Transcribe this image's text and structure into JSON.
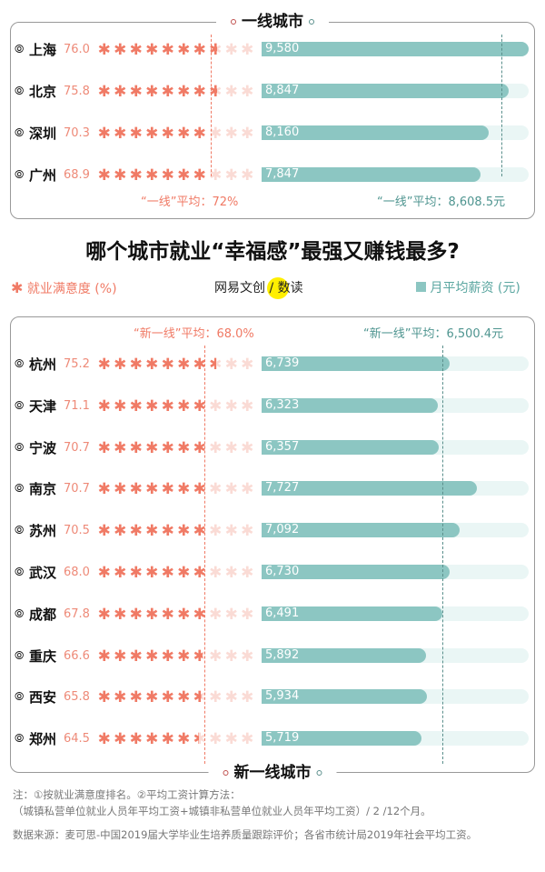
{
  "title": "哪个城市就业“幸福感”最强又赚钱最多?",
  "legend": {
    "stars": "就业满意度 (%)",
    "bars": "月平均薪资 (元)",
    "logo": "网易文创 / 数读"
  },
  "colors": {
    "star": "#f07a65",
    "bar": "#8cc6c2",
    "track": "#eaf6f5"
  },
  "notes": {
    "line1": "注：①按就业满意度排名。②平均工资计算方法：",
    "line2": "（城镇私营单位就业人员年平均工资+城镇非私营单位就业人员年平均工资）/ 2 /12个月。",
    "source": "数据来源：麦可思-中国2019届大学毕业生培养质量跟踪评价；各省市统计局2019年社会平均工资。"
  },
  "chart_data": [
    {
      "type": "bar",
      "title": "一线城市",
      "salary_max": 9580,
      "avg_satisfaction": 72,
      "avg_salary": 8608.5,
      "avg_satisfaction_label": "“一线”平均：72%",
      "avg_salary_label": "“一线”平均：8,608.5元",
      "rows": [
        {
          "city": "上海",
          "satisfaction": 76.0,
          "score": "76.0",
          "salary": 9580,
          "salary_label": "9,580"
        },
        {
          "city": "北京",
          "satisfaction": 75.8,
          "score": "75.8",
          "salary": 8847,
          "salary_label": "8,847"
        },
        {
          "city": "深圳",
          "satisfaction": 70.3,
          "score": "70.3",
          "salary": 8160,
          "salary_label": "8,160"
        },
        {
          "city": "广州",
          "satisfaction": 68.9,
          "score": "68.9",
          "salary": 7847,
          "salary_label": "7,847"
        }
      ]
    },
    {
      "type": "bar",
      "title": "新一线城市",
      "salary_max": 9580,
      "avg_satisfaction": 68.0,
      "avg_salary": 6500.4,
      "avg_satisfaction_label": "“新一线”平均：68.0%",
      "avg_salary_label": "“新一线”平均：6,500.4元",
      "rows": [
        {
          "city": "杭州",
          "satisfaction": 75.2,
          "score": "75.2",
          "salary": 6739,
          "salary_label": "6,739"
        },
        {
          "city": "天津",
          "satisfaction": 71.1,
          "score": "71.1",
          "salary": 6323,
          "salary_label": "6,323"
        },
        {
          "city": "宁波",
          "satisfaction": 70.7,
          "score": "70.7",
          "salary": 6357,
          "salary_label": "6,357"
        },
        {
          "city": "南京",
          "satisfaction": 70.7,
          "score": "70.7",
          "salary": 7727,
          "salary_label": "7,727"
        },
        {
          "city": "苏州",
          "satisfaction": 70.5,
          "score": "70.5",
          "salary": 7092,
          "salary_label": "7,092"
        },
        {
          "city": "武汉",
          "satisfaction": 68.0,
          "score": "68.0",
          "salary": 6730,
          "salary_label": "6,730"
        },
        {
          "city": "成都",
          "satisfaction": 67.8,
          "score": "67.8",
          "salary": 6491,
          "salary_label": "6,491"
        },
        {
          "city": "重庆",
          "satisfaction": 66.6,
          "score": "66.6",
          "salary": 5892,
          "salary_label": "5,892"
        },
        {
          "city": "西安",
          "satisfaction": 65.8,
          "score": "65.8",
          "salary": 5934,
          "salary_label": "5,934"
        },
        {
          "city": "郑州",
          "satisfaction": 64.5,
          "score": "64.5",
          "salary": 5719,
          "salary_label": "5,719"
        }
      ]
    }
  ]
}
